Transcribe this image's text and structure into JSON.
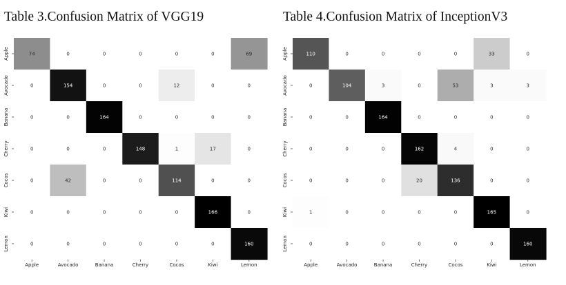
{
  "chart_data": [
    {
      "type": "heatmap",
      "title": "Table 3.Confusion Matrix of VGG19",
      "xlabel": "",
      "ylabel": "",
      "categories": [
        "Apple",
        "Avocado",
        "Banana",
        "Cherry",
        "Cocos",
        "Kiwi",
        "Lemon"
      ],
      "values": [
        [
          74,
          0,
          0,
          0,
          0,
          0,
          69
        ],
        [
          0,
          154,
          0,
          0,
          12,
          0,
          0
        ],
        [
          0,
          0,
          164,
          0,
          0,
          0,
          0
        ],
        [
          0,
          0,
          0,
          148,
          1,
          17,
          0
        ],
        [
          0,
          42,
          0,
          0,
          114,
          0,
          0
        ],
        [
          0,
          0,
          0,
          0,
          0,
          166,
          0
        ],
        [
          0,
          0,
          0,
          0,
          0,
          0,
          160
        ]
      ],
      "colormap": "grayscale-reversed",
      "vmax": 166,
      "legend": "none",
      "grid": false
    },
    {
      "type": "heatmap",
      "title": "Table 4.Confusion Matrix of InceptionV3",
      "xlabel": "",
      "ylabel": "",
      "categories": [
        "Apple",
        "Avocado",
        "Banana",
        "Cherry",
        "Cocos",
        "Kiwi",
        "Lemon"
      ],
      "values": [
        [
          110,
          0,
          0,
          0,
          0,
          33,
          0
        ],
        [
          0,
          104,
          3,
          0,
          53,
          3,
          3
        ],
        [
          0,
          0,
          164,
          0,
          0,
          0,
          0
        ],
        [
          0,
          0,
          0,
          162,
          4,
          0,
          0
        ],
        [
          0,
          0,
          0,
          20,
          136,
          0,
          0
        ],
        [
          1,
          0,
          0,
          0,
          0,
          165,
          0
        ],
        [
          0,
          0,
          0,
          0,
          0,
          0,
          160
        ]
      ],
      "colormap": "grayscale-reversed",
      "vmax": 165,
      "legend": "none",
      "grid": false
    }
  ]
}
